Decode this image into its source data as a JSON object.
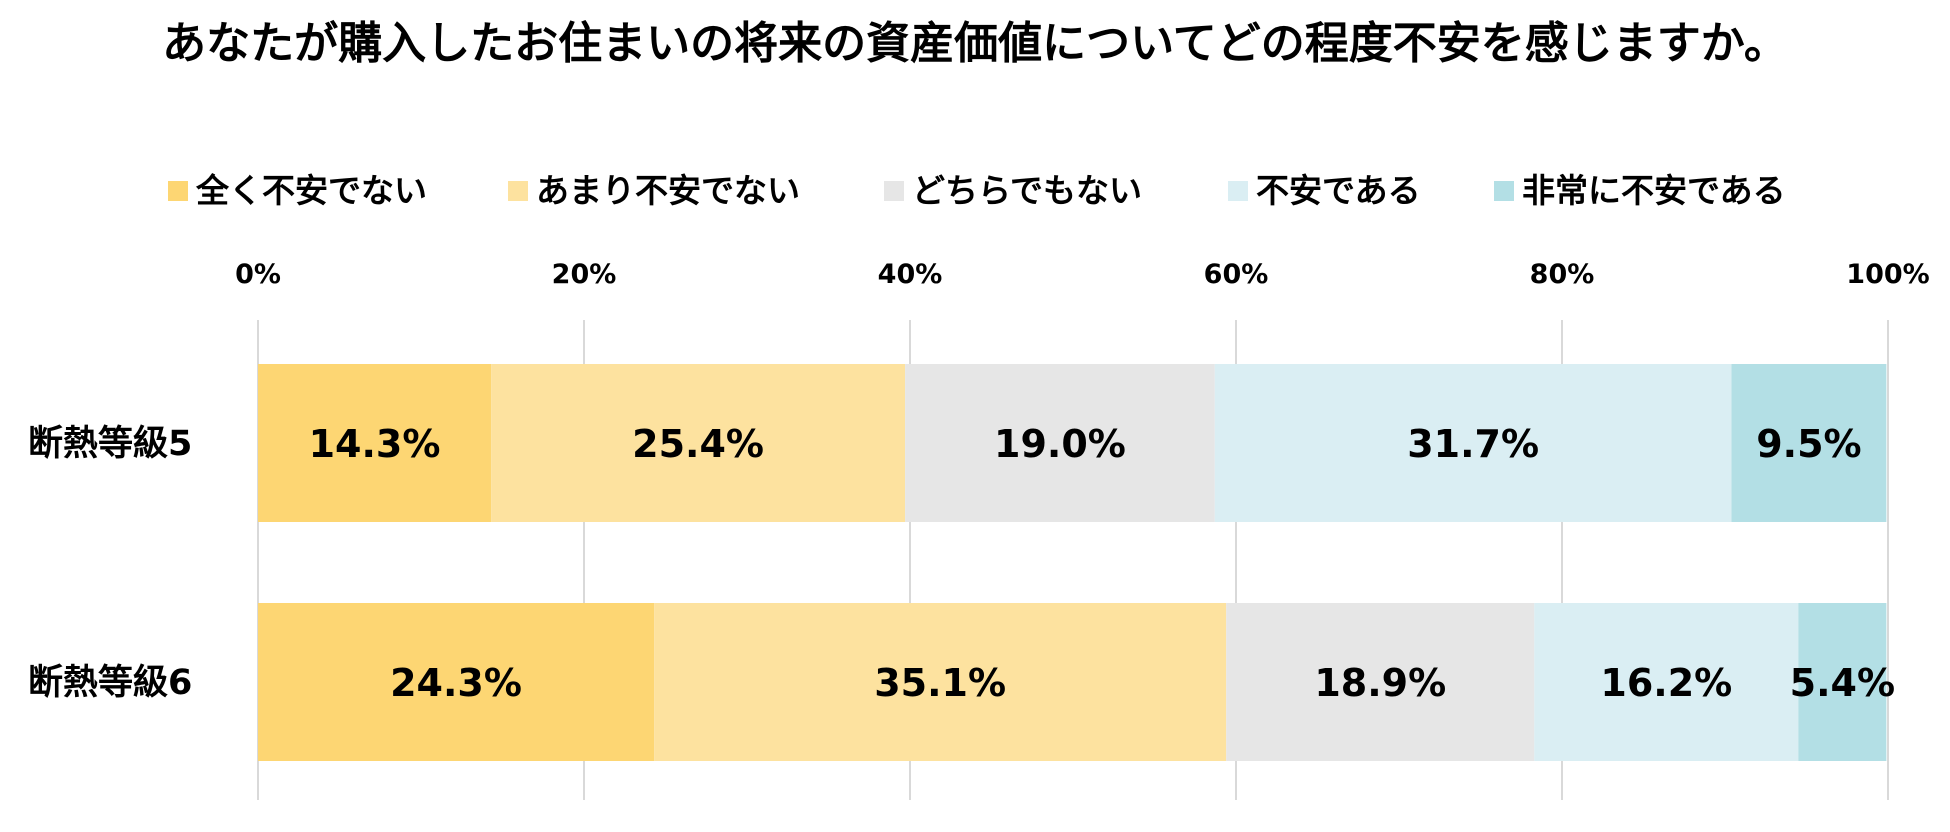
{
  "chart_data": {
    "type": "bar",
    "orientation": "horizontal",
    "stacked": true,
    "title": "あなたが購入したお住まいの将来の資産価値についてどの程度不安を感じますか。",
    "categories": [
      "断熱等級5",
      "断熱等級6"
    ],
    "series": [
      {
        "name": "全く不安でない",
        "color": "#FDD673",
        "values": [
          14.3,
          24.3
        ]
      },
      {
        "name": "あまり不安でない",
        "color": "#FDE29F",
        "values": [
          25.4,
          35.1
        ]
      },
      {
        "name": "どちらでもない",
        "color": "#E6E6E6",
        "values": [
          19.0,
          18.9
        ]
      },
      {
        "name": "不安である",
        "color": "#DAEEF3",
        "values": [
          31.7,
          16.2
        ]
      },
      {
        "name": "非常に不安である",
        "color": "#B3DFE5",
        "values": [
          9.5,
          5.4
        ]
      }
    ],
    "data_labels": [
      [
        "14.3%",
        "25.4%",
        "19.0%",
        "31.7%",
        "9.5%"
      ],
      [
        "24.3%",
        "35.1%",
        "18.9%",
        "16.2%",
        "5.4%"
      ]
    ],
    "xlim": [
      0,
      100
    ],
    "xticks": [
      0,
      20,
      40,
      60,
      80,
      100
    ],
    "xtick_labels": [
      "0%",
      "20%",
      "40%",
      "60%",
      "80%",
      "100%"
    ],
    "xaxis_position": "top",
    "grid": true,
    "legend_position": "top"
  }
}
